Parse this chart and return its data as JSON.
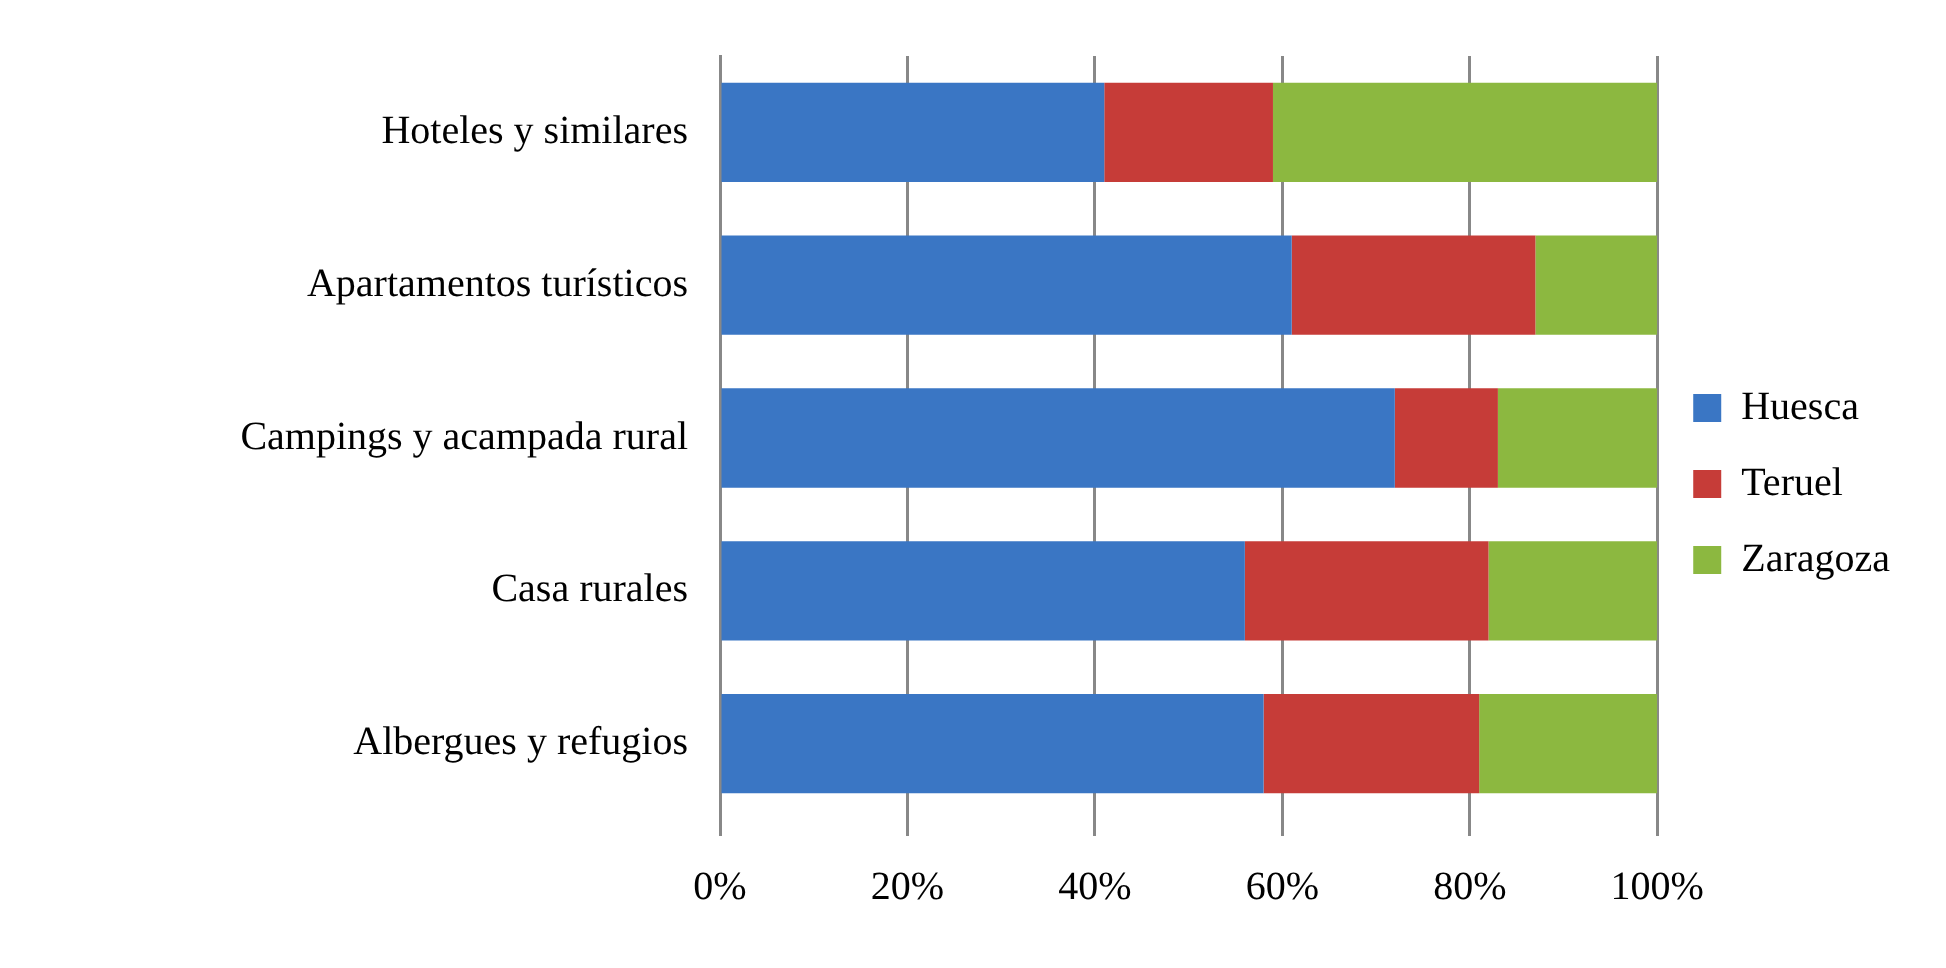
{
  "chart_data": {
    "type": "bar",
    "orientation": "horizontal",
    "stacked": true,
    "categories": [
      "Hoteles y similares",
      "Apartamentos turísticos",
      "Campings y acampada rural",
      "Casa rurales",
      "Albergues y refugios"
    ],
    "series": [
      {
        "name": "Huesca",
        "color": "#3a76c4",
        "values": [
          41,
          61,
          72,
          56,
          58
        ]
      },
      {
        "name": "Teruel",
        "color": "#c63c38",
        "values": [
          18,
          26,
          11,
          26,
          23
        ]
      },
      {
        "name": "Zaragoza",
        "color": "#8cb840",
        "values": [
          41,
          13,
          17,
          18,
          19
        ]
      }
    ],
    "xlim": [
      0,
      100
    ],
    "xticks": [
      {
        "value": 0,
        "label": "0%"
      },
      {
        "value": 20,
        "label": "20%"
      },
      {
        "value": 40,
        "label": "40%"
      },
      {
        "value": 60,
        "label": "60%"
      },
      {
        "value": 80,
        "label": "80%"
      },
      {
        "value": 100,
        "label": "100%"
      }
    ],
    "grid": "x",
    "legend": "right"
  }
}
